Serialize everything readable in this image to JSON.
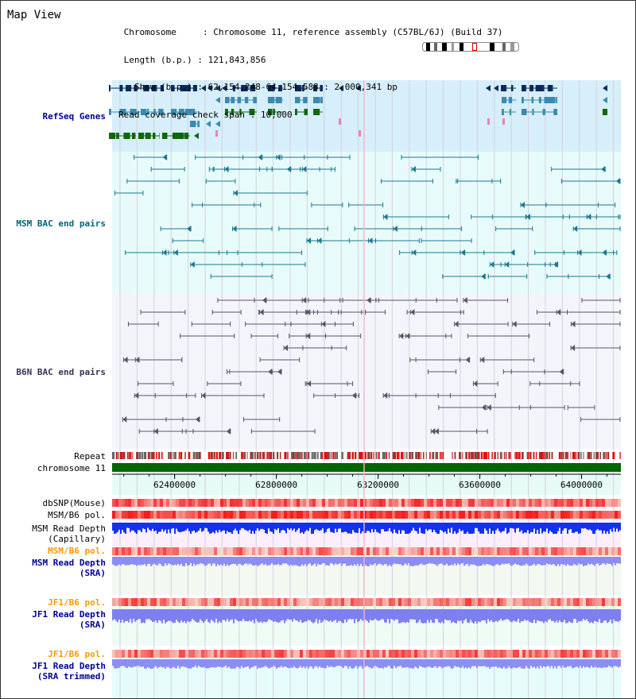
{
  "header": {
    "title": "Map View",
    "chromosome_label": "Chromosome",
    "chromosome_value": "Chromosome 11, reference assembly (C57BL/6J) (Build 37)",
    "length_label": "Length (b.p.)",
    "length_value": "121,843,856",
    "show_label": "Show (b.p.)",
    "show_value": "62,154,248-64,154,588 : 2,000,341 bp",
    "span_label": "Read coverage check span",
    "span_value": "10,000"
  },
  "tracks": {
    "refseq": {
      "label": "RefSeq Genes",
      "color": "#000099"
    },
    "msm_bac": {
      "label": "MSM BAC end pairs",
      "color": "#006677"
    },
    "b6n_bac": {
      "label": "B6N BAC end pairs",
      "color": "#333355"
    },
    "repeat": {
      "label": "Repeat"
    },
    "chromosome": {
      "label": "chromosome 11"
    },
    "dbsnp": {
      "label": "dbSNP(Mouse)"
    },
    "msm_b6_pol_1": {
      "label": "MSM/B6 pol."
    },
    "msm_depth_cap": {
      "label": "MSM Read Depth",
      "sub": "(Capillary)"
    },
    "msm_b6_pol_2": {
      "label": "MSM/B6 pol.",
      "color": "#ff9900"
    },
    "msm_depth_sra": {
      "label": "MSM Read Depth",
      "sub": "(SRA)",
      "color": "#000099"
    },
    "jf1_b6_pol_1": {
      "label": "JF1/B6 pol.",
      "color": "#ff9900"
    },
    "jf1_depth_sra": {
      "label": "JF1 Read Depth",
      "sub": "(SRA)",
      "color": "#000099"
    },
    "jf1_b6_pol_2": {
      "label": "JF1/B6 pol.",
      "color": "#ff9900"
    },
    "jf1_depth_trim": {
      "label": "JF1 Read Depth",
      "sub": "(SRA trimmed)",
      "color": "#000099"
    }
  },
  "axis": {
    "ticks": [
      "62400000",
      "62800000",
      "63200000",
      "63600000",
      "64000000"
    ],
    "tick_values": [
      62400000,
      62800000,
      63200000,
      63600000,
      64000000
    ],
    "range": [
      62154248,
      64154588
    ]
  }
}
